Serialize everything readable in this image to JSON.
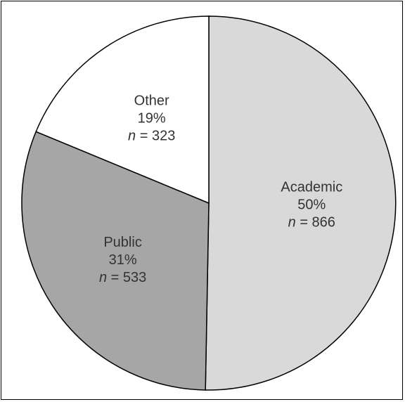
{
  "chart_data": {
    "type": "pie",
    "title": "",
    "slices": [
      {
        "name": "Academic",
        "percent_label": "50%",
        "n_value": "866",
        "value": 866,
        "color": "#d9d9d9"
      },
      {
        "name": "Public",
        "percent_label": "31%",
        "n_value": "533",
        "value": 533,
        "color": "#a6a6a6"
      },
      {
        "name": "Other",
        "percent_label": "19%",
        "n_value": "323",
        "value": 323,
        "color": "#ffffff"
      }
    ],
    "n_prefix": "n",
    "n_equals": " = ",
    "start_angle_deg": 0,
    "direction": "clockwise",
    "outline_color": "#000000"
  }
}
